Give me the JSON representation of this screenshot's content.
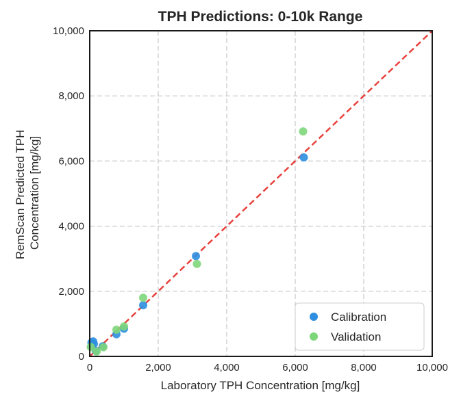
{
  "chart_data": {
    "type": "scatter",
    "title": "TPH Predictions: 0-10k Range",
    "xlabel": "Laboratory TPH Concentration [mg/kg]",
    "ylabel_lines": [
      "RemScan Predicted TPH",
      "Concentration [mg/kg]"
    ],
    "xlim": [
      0,
      10000
    ],
    "ylim": [
      0,
      10000
    ],
    "xticks": [
      0,
      2000,
      4000,
      6000,
      8000,
      10000
    ],
    "yticks": [
      0,
      2000,
      4000,
      6000,
      8000,
      10000
    ],
    "xtick_labels": [
      "0",
      "2,000",
      "4,000",
      "6,000",
      "8,000",
      "10,000"
    ],
    "ytick_labels": [
      "0",
      "2,000",
      "4,000",
      "6,000",
      "8,000",
      "10,000"
    ],
    "grid": true,
    "legend_position": "lower-right",
    "reference_line": {
      "style": "dashed",
      "color": "#e8413c",
      "from": [
        0,
        0
      ],
      "to": [
        10000,
        10000
      ]
    },
    "series": [
      {
        "name": "Calibration",
        "color": "#2e8fe0",
        "points": [
          [
            50,
            420
          ],
          [
            100,
            460
          ],
          [
            60,
            330
          ],
          [
            120,
            380
          ],
          [
            180,
            170
          ],
          [
            380,
            310
          ],
          [
            780,
            680
          ],
          [
            1000,
            850
          ],
          [
            1560,
            1570
          ],
          [
            3100,
            3080
          ],
          [
            6250,
            6110
          ]
        ]
      },
      {
        "name": "Validation",
        "color": "#7ed67a",
        "points": [
          [
            30,
            290
          ],
          [
            200,
            150
          ],
          [
            400,
            280
          ],
          [
            780,
            820
          ],
          [
            1000,
            920
          ],
          [
            1560,
            1800
          ],
          [
            3130,
            2840
          ],
          [
            6230,
            6910
          ]
        ]
      }
    ]
  }
}
